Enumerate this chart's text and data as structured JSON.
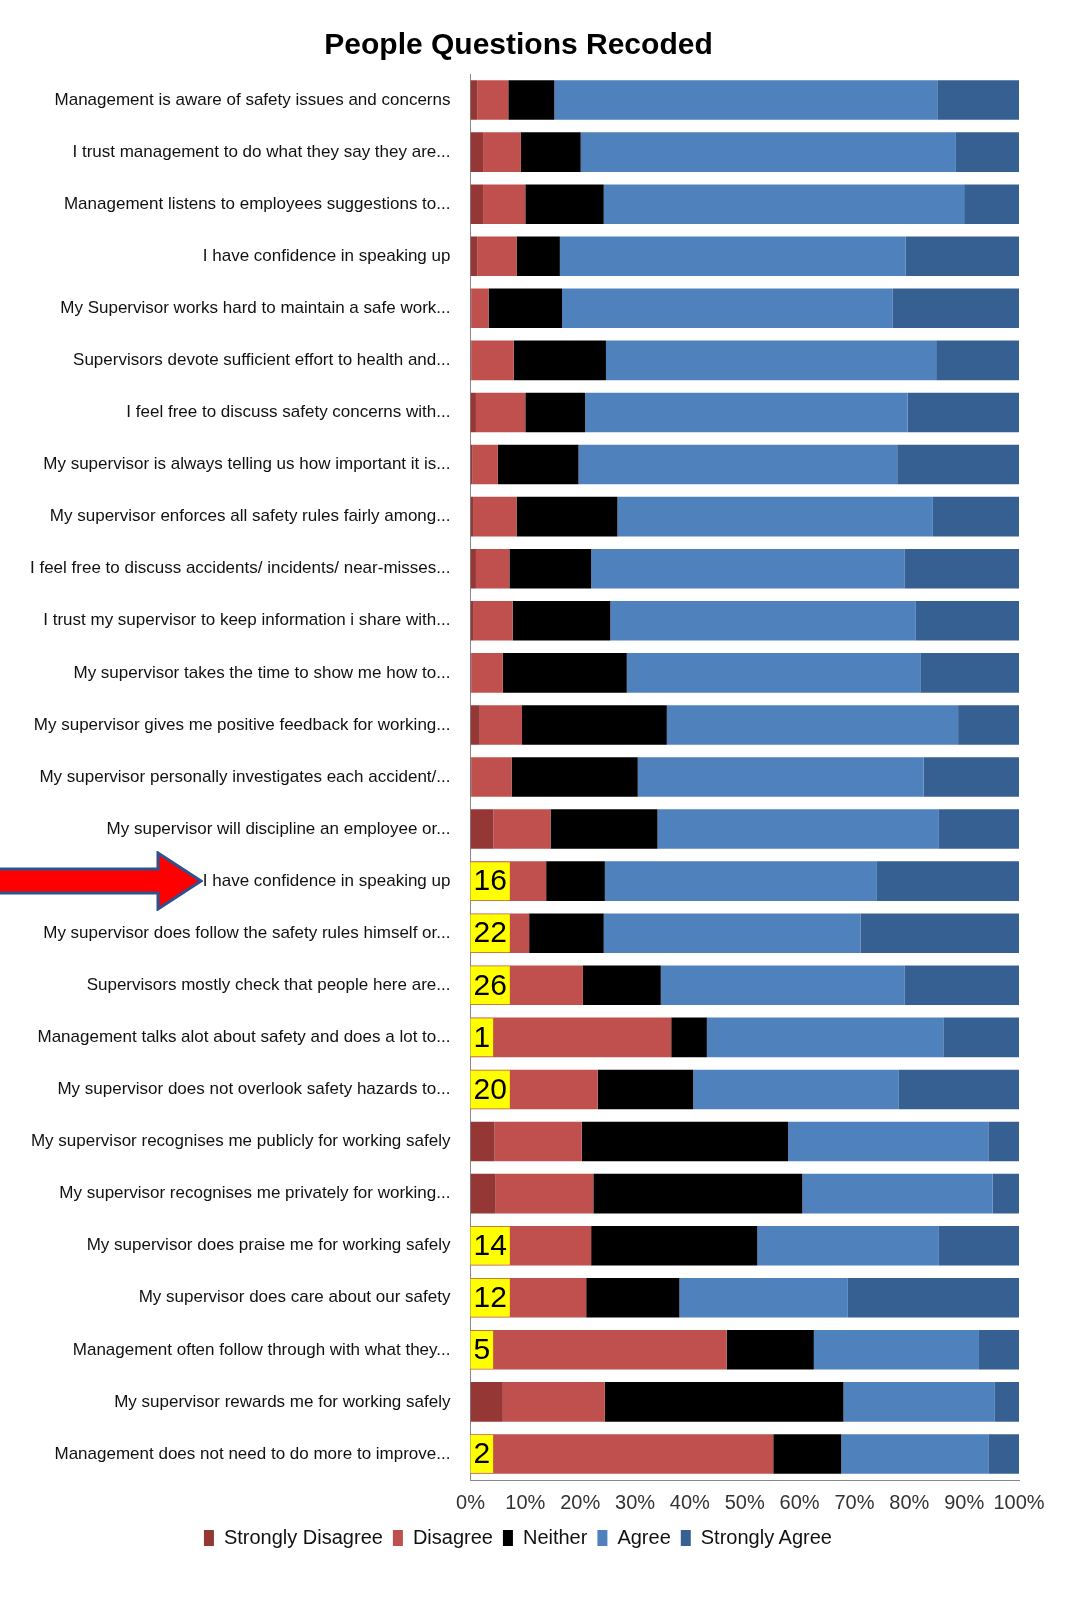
{
  "chart_data": {
    "type": "bar",
    "orientation": "horizontal",
    "stacked": true,
    "title": "People Questions Recoded",
    "categories": [
      "Management is aware of safety issues and concerns",
      "I trust management to do what they say they are...",
      "Management listens to employees suggestions to...",
      "I have confidence in speaking up",
      "My Supervisor works hard to maintain a safe work...",
      "Supervisors devote sufficient effort to health and...",
      "I feel free to discuss safety concerns with...",
      "My supervisor is always telling us how important it is...",
      "My supervisor enforces all safety rules fairly among...",
      "I feel free to discuss accidents/ incidents/ near-misses...",
      "I trust my supervisor to keep information i share with...",
      "My supervisor takes the time to show me how to...",
      "My supervisor gives me positive feedback for working...",
      "My supervisor personally investigates each accident/...",
      "My supervisor will discipline an employee or...",
      "I have confidence in speaking up",
      "My supervisor does follow the safety rules himself or...",
      "Supervisors mostly check that people here are...",
      "Management talks alot about safety and does a lot to...",
      "My supervisor does not overlook safety hazards to...",
      "My supervisor recognises me publicly for working safely",
      "My supervisor recognises me privately for working...",
      "My supervisor does praise me for working safely",
      "My supervisor does care about our safety",
      "Management often follow through with what they...",
      "My supervisor rewards me for working safely",
      "Management does not need to do more to improve..."
    ],
    "series": [
      {
        "name": "Strongly Disagree",
        "color": "#953735",
        "values": [
          1.3,
          2.3,
          2.3,
          1.3,
          0.2,
          0.2,
          1.0,
          0.4,
          0.6,
          1.0,
          0.6,
          0.2,
          1.7,
          0.2,
          4.2,
          null,
          null,
          null,
          null,
          null,
          4.4,
          4.6,
          null,
          null,
          null,
          5.9,
          null
        ]
      },
      {
        "name": "Disagree",
        "color": "#c0504d",
        "values": [
          5.6,
          6.9,
          7.7,
          7.1,
          3.1,
          7.7,
          9.0,
          4.6,
          7.8,
          6.1,
          7.1,
          5.7,
          7.7,
          7.3,
          10.4,
          13.8,
          10.7,
          20.5,
          36.6,
          23.2,
          15.9,
          17.8,
          22.0,
          21.1,
          46.7,
          18.6,
          55.2
        ]
      },
      {
        "name": "Neither",
        "color": "#000000",
        "values": [
          8.4,
          10.9,
          14.3,
          7.9,
          13.4,
          16.8,
          10.9,
          14.7,
          18.4,
          14.9,
          17.8,
          22.6,
          26.4,
          23.0,
          19.5,
          10.7,
          13.6,
          14.2,
          6.5,
          17.4,
          37.6,
          38.1,
          30.3,
          17.0,
          15.9,
          43.5,
          12.4
        ]
      },
      {
        "name": "Agree",
        "color": "#4f81bd",
        "values": [
          69.8,
          68.4,
          65.7,
          63.0,
          60.3,
          60.2,
          58.8,
          58.1,
          57.5,
          57.1,
          55.7,
          53.5,
          53.1,
          52.1,
          51.3,
          49.6,
          46.8,
          44.4,
          43.1,
          37.4,
          36.5,
          34.7,
          33.1,
          30.7,
          30.1,
          27.6,
          26.8
        ]
      },
      {
        "name": "Strongly Agree",
        "color": "#376092",
        "values": [
          14.9,
          11.5,
          10.0,
          20.7,
          23.0,
          15.1,
          20.3,
          22.2,
          15.7,
          20.9,
          18.8,
          18.0,
          11.1,
          17.4,
          14.6,
          25.9,
          28.9,
          20.9,
          13.8,
          22.0,
          5.6,
          4.8,
          14.6,
          31.2,
          7.3,
          4.4,
          5.6
        ]
      }
    ],
    "xlim": [
      0,
      100
    ],
    "xticks": [
      {
        "value": 0,
        "label": "0%"
      },
      {
        "value": 10,
        "label": "10%"
      },
      {
        "value": 20,
        "label": "20%"
      },
      {
        "value": 30,
        "label": "30%"
      },
      {
        "value": 40,
        "label": "40%"
      },
      {
        "value": 50,
        "label": "50%"
      },
      {
        "value": 60,
        "label": "60%"
      },
      {
        "value": 70,
        "label": "70%"
      },
      {
        "value": 80,
        "label": "80%"
      },
      {
        "value": 90,
        "label": "90%"
      },
      {
        "value": 100,
        "label": "100%"
      }
    ],
    "annotations": [
      "16",
      {
        "text": "22",
        "y": "My supervisor does follow the safety rules himself or..."
      },
      {
        "text": "26",
        "y": "Supervisors mostly check that people here are..."
      },
      {
        "text": "1",
        "y": "Management talks alot about safety and does a lot to..."
      },
      {
        "text": "20",
        "y": "My supervisor does not overlook safety hazards to..."
      },
      {
        "text": "14",
        "y": "My supervisor does praise me for working safely"
      },
      {
        "text": "12",
        "y": "My supervisor does care about our safety"
      },
      {
        "text": "5",
        "y": "Management often follow through with what they..."
      },
      {
        "text": "2",
        "y": "Management does not need to do more to improve..."
      }
    ],
    "grid": false,
    "legend": "bottom"
  }
}
